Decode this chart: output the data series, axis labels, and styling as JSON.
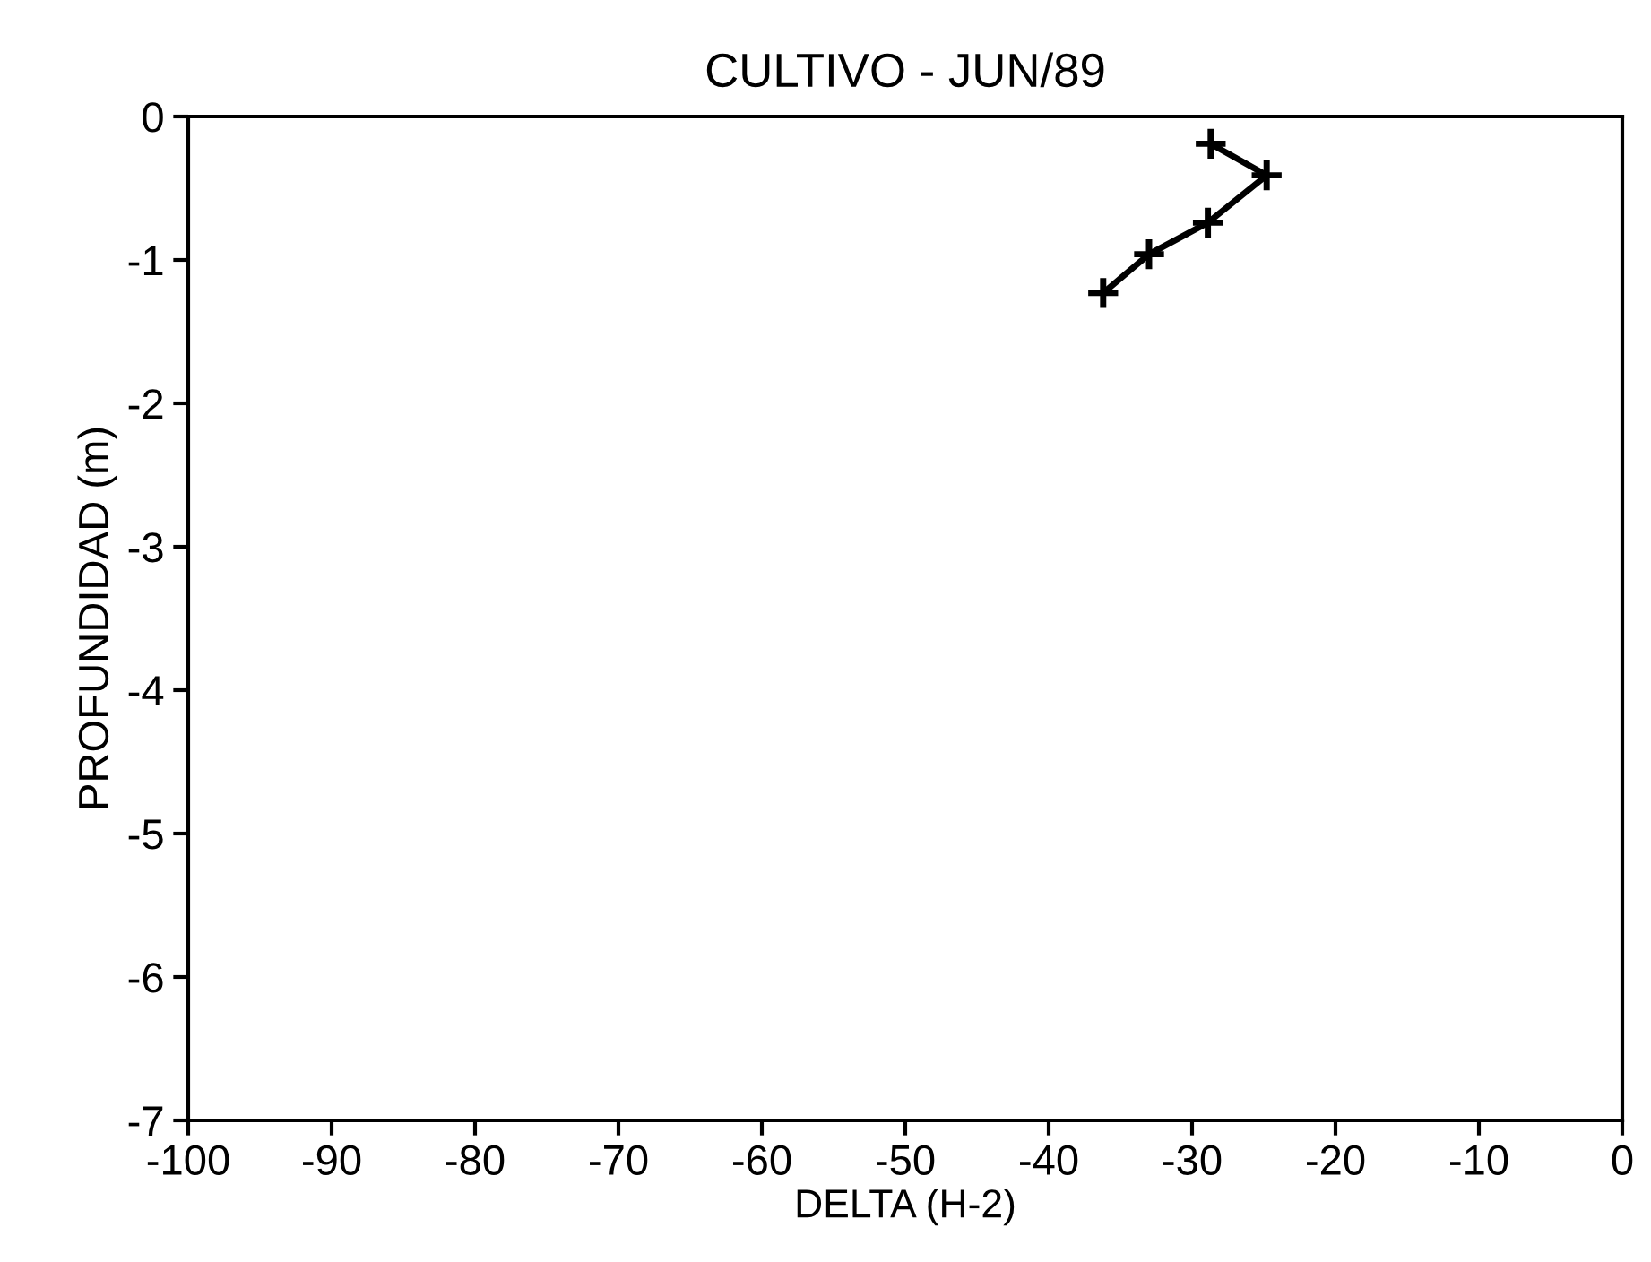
{
  "chart_data": {
    "type": "line",
    "title": "CULTIVO - JUN/89",
    "xlabel": "DELTA (H-2)",
    "ylabel": "PROFUNDIDAD (m)",
    "series": [
      {
        "color": "#000000",
        "x": [
          -28.7,
          -24.8,
          -28.9,
          -33.0,
          -36.2
        ],
        "values": [
          -0.19,
          -0.41,
          -0.74,
          -0.96,
          -1.23
        ]
      }
    ],
    "xlim": [
      -100,
      0
    ],
    "xticks": [
      -100,
      -90,
      -80,
      -70,
      -60,
      -50,
      -40,
      -30,
      -20,
      -10,
      0
    ],
    "ylim": [
      -7,
      0
    ],
    "yticks": [
      -7,
      -6,
      -5,
      -4,
      -3,
      -2,
      -1,
      0
    ],
    "marker": "cross",
    "line_style": "solid",
    "grid": false,
    "legend": false
  }
}
